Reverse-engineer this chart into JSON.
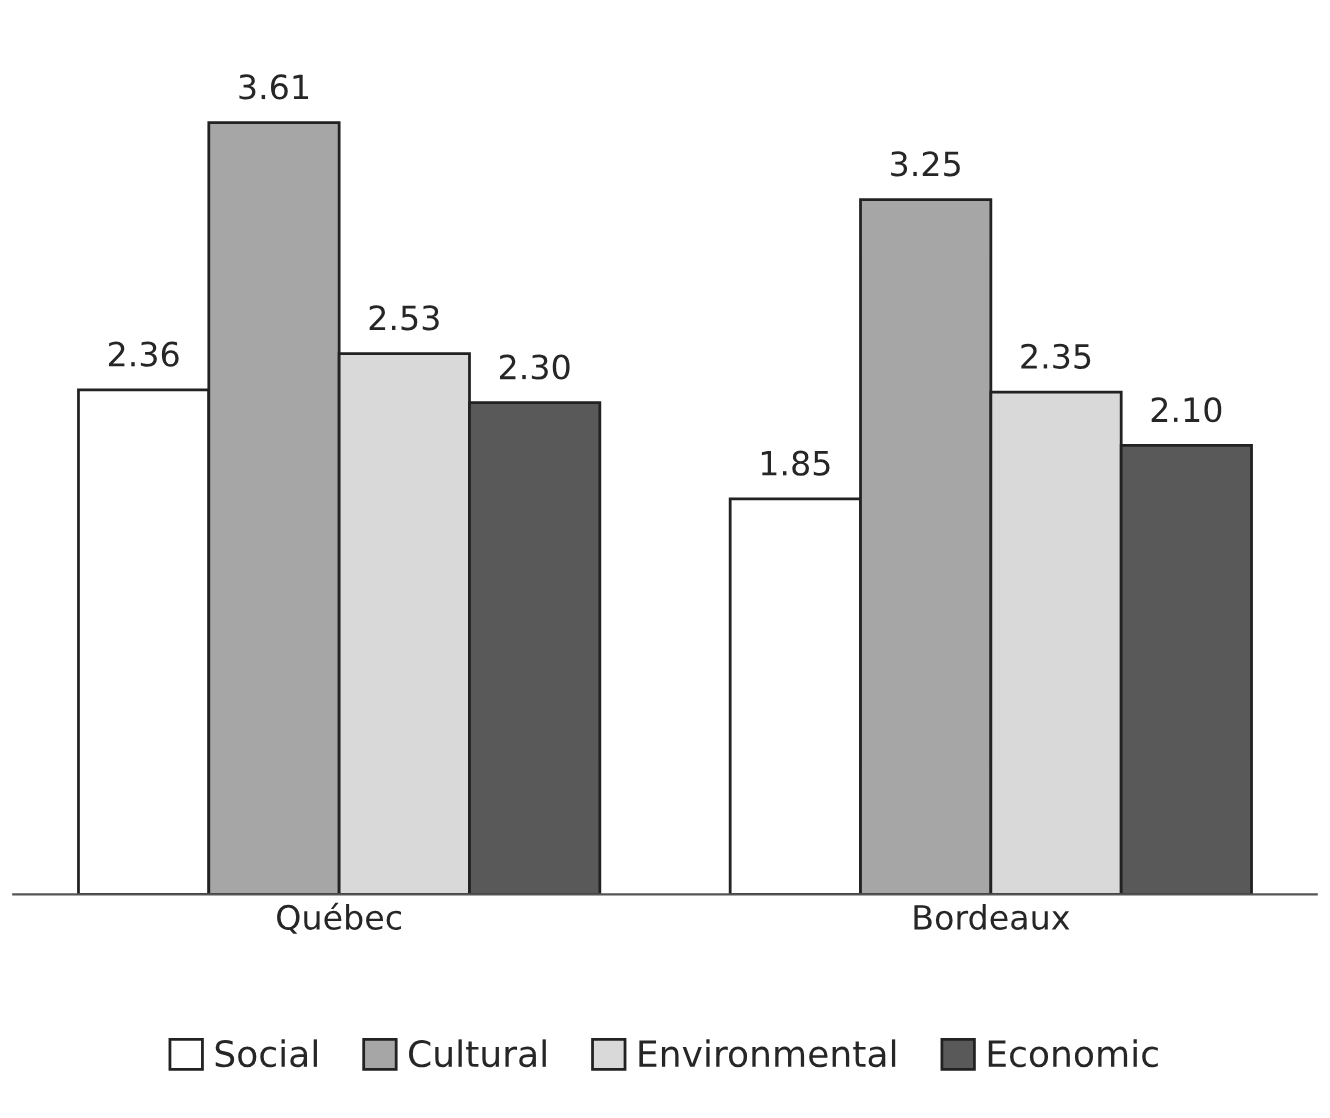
{
  "chart_data": {
    "type": "bar",
    "categories": [
      "Québec",
      "Bordeaux"
    ],
    "series": [
      {
        "name": "Social",
        "color": "#ffffff",
        "values": [
          2.36,
          1.85
        ],
        "value_labels": [
          "2.36",
          "1.85"
        ]
      },
      {
        "name": "Cultural",
        "color": "#a6a6a6",
        "values": [
          3.61,
          3.25
        ],
        "value_labels": [
          "3.61",
          "3.25"
        ]
      },
      {
        "name": "Environmental",
        "color": "#d9d9d9",
        "values": [
          2.53,
          2.35
        ],
        "value_labels": [
          "2.53",
          "2.35"
        ]
      },
      {
        "name": "Economic",
        "color": "#595959",
        "values": [
          2.3,
          2.1
        ],
        "value_labels": [
          "2.30",
          "2.10"
        ]
      }
    ],
    "legend": "bottom",
    "grid": false,
    "tick_labels": "x"
  }
}
